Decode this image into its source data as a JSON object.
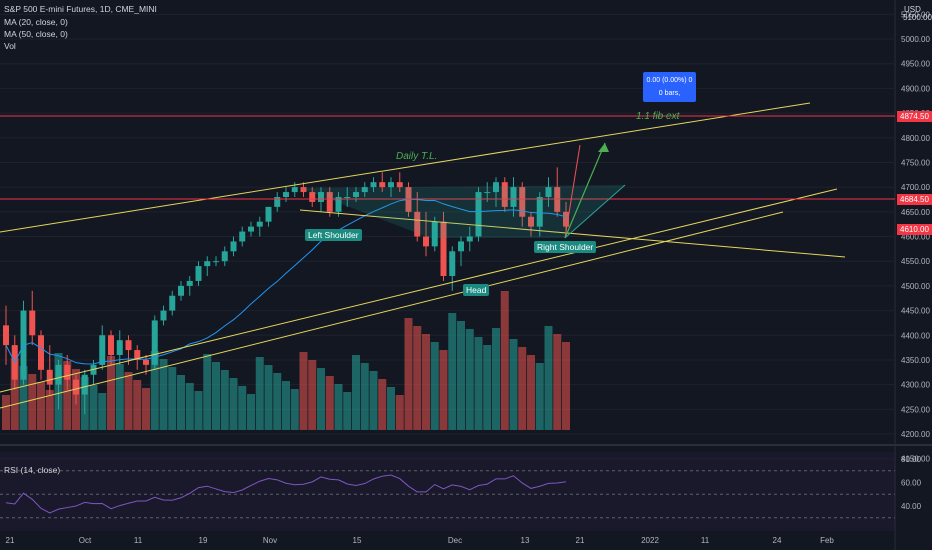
{
  "header": {
    "symbol_line": "S&P 500 E-mini Futures, 1D, CME_MINI",
    "ma20": "MA (20, close, 0)",
    "ma50": "MA (50, close, 0)",
    "vol": "Vol",
    "rsi": "RSI (14, close)",
    "currency": "USD",
    "top_tick": "5100.00"
  },
  "price_tags": {
    "upper_line": "4874.50",
    "last": "4684.50",
    "lower": "4610.00"
  },
  "infobox": {
    "line1": "0.00 (0.00%) 0",
    "line2": "0 bars,"
  },
  "annotations": {
    "left_shoulder": "Left Shoulder",
    "head": "Head",
    "right_shoulder": "Right Shoulder",
    "daily_tl": "Daily T.L.",
    "fib": "1.1 fib ext"
  },
  "colors": {
    "bg": "#131722",
    "up": "#26a69a",
    "down": "#ef5350",
    "ma20": "#2196f3",
    "trend": "#e5d65b",
    "rsi": "#7e57c2",
    "hline": "#f23645"
  },
  "chart_data": {
    "type": "candlestick",
    "symbol": "S&P 500 E-mini Futures",
    "interval": "1D",
    "exchange": "CME_MINI",
    "price_ticks": [
      5050,
      5000,
      4950,
      4900,
      4850,
      4800,
      4750,
      4700,
      4650,
      4600,
      4550,
      4500,
      4450,
      4400,
      4350,
      4300,
      4250,
      4200,
      4150
    ],
    "rsi_ticks": [
      80,
      60,
      40
    ],
    "x_ticks": [
      "21",
      "Oct",
      "11",
      "19",
      "Nov",
      "15",
      "Dec",
      "13",
      "21",
      "2022",
      "11",
      "24",
      "Feb"
    ],
    "candles": [
      [
        4420,
        4460,
        4340,
        4380
      ],
      [
        4380,
        4400,
        4290,
        4310
      ],
      [
        4310,
        4470,
        4300,
        4450
      ],
      [
        4450,
        4490,
        4380,
        4400
      ],
      [
        4400,
        4410,
        4310,
        4330
      ],
      [
        4330,
        4380,
        4280,
        4300
      ],
      [
        4300,
        4350,
        4250,
        4340
      ],
      [
        4340,
        4360,
        4290,
        4310
      ],
      [
        4310,
        4320,
        4260,
        4280
      ],
      [
        4280,
        4330,
        4240,
        4320
      ],
      [
        4320,
        4350,
        4300,
        4340
      ],
      [
        4340,
        4420,
        4330,
        4400
      ],
      [
        4400,
        4410,
        4340,
        4360
      ],
      [
        4360,
        4410,
        4340,
        4390
      ],
      [
        4390,
        4400,
        4340,
        4370
      ],
      [
        4370,
        4380,
        4330,
        4350
      ],
      [
        4350,
        4360,
        4320,
        4340
      ],
      [
        4340,
        4440,
        4330,
        4430
      ],
      [
        4430,
        4460,
        4420,
        4450
      ],
      [
        4450,
        4490,
        4440,
        4480
      ],
      [
        4480,
        4510,
        4470,
        4500
      ],
      [
        4500,
        4520,
        4480,
        4510
      ],
      [
        4510,
        4550,
        4500,
        4540
      ],
      [
        4540,
        4560,
        4520,
        4550
      ],
      [
        4550,
        4560,
        4540,
        4550
      ],
      [
        4550,
        4580,
        4540,
        4570
      ],
      [
        4570,
        4600,
        4560,
        4590
      ],
      [
        4590,
        4620,
        4580,
        4610
      ],
      [
        4610,
        4630,
        4600,
        4620
      ],
      [
        4620,
        4640,
        4600,
        4630
      ],
      [
        4630,
        4660,
        4620,
        4660
      ],
      [
        4660,
        4690,
        4650,
        4680
      ],
      [
        4680,
        4700,
        4670,
        4690
      ],
      [
        4690,
        4710,
        4680,
        4700
      ],
      [
        4700,
        4710,
        4680,
        4690
      ],
      [
        4690,
        4700,
        4660,
        4670
      ],
      [
        4670,
        4700,
        4650,
        4690
      ],
      [
        4690,
        4700,
        4640,
        4650
      ],
      [
        4650,
        4690,
        4640,
        4680
      ],
      [
        4680,
        4700,
        4660,
        4680
      ],
      [
        4680,
        4700,
        4670,
        4690
      ],
      [
        4690,
        4710,
        4680,
        4700
      ],
      [
        4700,
        4720,
        4690,
        4710
      ],
      [
        4710,
        4730,
        4690,
        4700
      ],
      [
        4700,
        4720,
        4680,
        4710
      ],
      [
        4710,
        4730,
        4690,
        4700
      ],
      [
        4700,
        4710,
        4640,
        4650
      ],
      [
        4650,
        4690,
        4590,
        4600
      ],
      [
        4600,
        4650,
        4560,
        4580
      ],
      [
        4580,
        4640,
        4570,
        4630
      ],
      [
        4630,
        4650,
        4510,
        4520
      ],
      [
        4520,
        4580,
        4490,
        4570
      ],
      [
        4570,
        4600,
        4540,
        4590
      ],
      [
        4590,
        4620,
        4570,
        4600
      ],
      [
        4600,
        4700,
        4590,
        4690
      ],
      [
        4690,
        4710,
        4670,
        4690
      ],
      [
        4690,
        4720,
        4660,
        4710
      ],
      [
        4710,
        4720,
        4650,
        4660
      ],
      [
        4660,
        4720,
        4640,
        4700
      ],
      [
        4700,
        4710,
        4620,
        4640
      ],
      [
        4640,
        4650,
        4600,
        4620
      ],
      [
        4620,
        4690,
        4600,
        4680
      ],
      [
        4680,
        4720,
        4660,
        4700
      ],
      [
        4700,
        4740,
        4640,
        4650
      ],
      [
        4650,
        4670,
        4610,
        4620
      ]
    ],
    "volume_bars": 65,
    "ma20": "blue line",
    "rsi": "purple line",
    "horizontal_lines": [
      4874.5,
      4684.5
    ],
    "ylim": [
      4150,
      5100
    ]
  }
}
